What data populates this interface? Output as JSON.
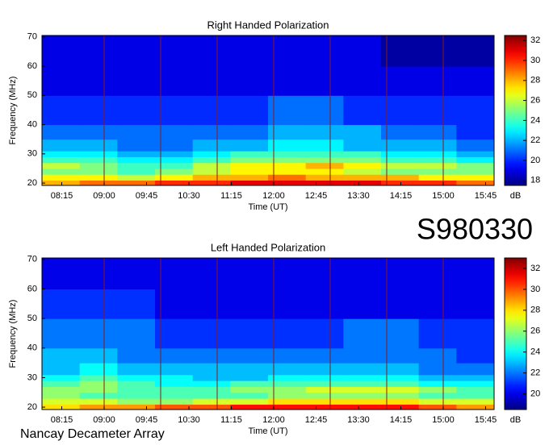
{
  "chart_data": [
    {
      "type": "heatmap",
      "title": "Right Handed Polarization",
      "x_label": "Time (UT)",
      "y_label": "Frequency (MHz)",
      "colorbar_label": "dB",
      "colormap": "jet",
      "xlim": [
        474,
        954
      ],
      "ylim": [
        19.2,
        70.5
      ],
      "xticks": [
        {
          "value": 495,
          "label": "08:15"
        },
        {
          "value": 540,
          "label": "09:00"
        },
        {
          "value": 585,
          "label": "09:45"
        },
        {
          "value": 630,
          "label": "10:30"
        },
        {
          "value": 675,
          "label": "11:15"
        },
        {
          "value": 720,
          "label": "12:00"
        },
        {
          "value": 765,
          "label": "12:45"
        },
        {
          "value": 810,
          "label": "13:30"
        },
        {
          "value": 855,
          "label": "14:15"
        },
        {
          "value": 900,
          "label": "15:00"
        },
        {
          "value": 945,
          "label": "15:45"
        }
      ],
      "yticks": [
        20,
        30,
        40,
        50,
        60,
        70
      ],
      "clim": [
        17.5,
        32.5
      ],
      "cticks": [
        18,
        20,
        22,
        24,
        26,
        28,
        30,
        32
      ],
      "markers": [
        540,
        600,
        660,
        720,
        780,
        840,
        900
      ],
      "marker_color": "#8b1a1a",
      "xbins": [
        474,
        514,
        554,
        594,
        634,
        674,
        714,
        754,
        794,
        834,
        874,
        914,
        954
      ],
      "ybins": [
        19.2,
        21,
        23,
        25,
        27,
        29,
        31,
        35,
        40,
        50,
        60,
        70.5
      ],
      "z": [
        [
          28,
          29,
          29,
          30,
          30,
          31,
          31,
          31,
          31,
          30,
          30,
          29
        ],
        [
          27,
          27,
          26,
          27,
          28,
          28,
          29,
          28,
          28,
          28,
          27,
          27
        ],
        [
          25,
          25,
          24,
          25,
          26,
          27,
          27,
          27,
          26,
          25,
          25,
          25
        ],
        [
          26,
          25,
          24,
          24,
          26,
          27,
          27,
          28,
          27,
          26,
          26,
          25
        ],
        [
          24,
          24,
          23,
          23,
          24,
          25,
          25,
          25,
          25,
          24,
          24,
          23
        ],
        [
          23,
          23,
          22,
          22,
          23,
          24,
          24,
          24,
          24,
          23,
          23,
          22
        ],
        [
          22,
          22,
          21,
          21,
          22,
          22,
          23,
          23,
          22,
          22,
          22,
          21
        ],
        [
          21,
          21,
          21,
          21,
          21,
          21,
          22,
          22,
          22,
          21,
          21,
          20
        ],
        [
          20,
          20,
          20,
          20,
          20,
          20,
          21,
          21,
          20,
          20,
          20,
          20
        ],
        [
          19,
          19,
          19,
          19,
          19,
          19,
          19,
          19,
          19,
          19,
          19,
          19
        ],
        [
          19,
          19,
          19,
          19,
          19,
          19,
          19,
          19,
          19,
          18,
          18,
          18
        ]
      ]
    },
    {
      "type": "heatmap",
      "title": "Left Handed Polarization",
      "x_label": "Time (UT)",
      "y_label": "Frequency (MHz)",
      "colorbar_label": "dB",
      "colormap": "jet",
      "xlim": [
        474,
        954
      ],
      "ylim": [
        19.2,
        70.5
      ],
      "xticks": [
        {
          "value": 495,
          "label": "08:15"
        },
        {
          "value": 540,
          "label": "09:00"
        },
        {
          "value": 585,
          "label": "09:45"
        },
        {
          "value": 630,
          "label": "10:30"
        },
        {
          "value": 675,
          "label": "11:15"
        },
        {
          "value": 720,
          "label": "12:00"
        },
        {
          "value": 765,
          "label": "12:45"
        },
        {
          "value": 810,
          "label": "13:30"
        },
        {
          "value": 855,
          "label": "14:15"
        },
        {
          "value": 900,
          "label": "15:00"
        },
        {
          "value": 945,
          "label": "15:45"
        }
      ],
      "yticks": [
        20,
        30,
        40,
        50,
        60,
        70
      ],
      "clim": [
        18.5,
        33
      ],
      "cticks": [
        20,
        22,
        24,
        26,
        28,
        30,
        32
      ],
      "markers": [
        540,
        600,
        660,
        720,
        780,
        840,
        900
      ],
      "marker_color": "#8b1a1a",
      "xbins": [
        474,
        514,
        554,
        594,
        634,
        674,
        714,
        754,
        794,
        834,
        874,
        914,
        954
      ],
      "ybins": [
        19.2,
        21,
        23,
        25,
        27,
        29,
        31,
        35,
        40,
        50,
        60,
        70.5
      ],
      "z": [
        [
          28,
          29,
          29,
          30,
          30,
          31,
          31,
          31,
          31,
          31,
          30,
          29
        ],
        [
          27,
          27,
          26,
          26,
          27,
          27,
          28,
          28,
          28,
          28,
          27,
          27
        ],
        [
          26,
          25,
          25,
          25,
          25,
          25,
          26,
          26,
          26,
          26,
          25,
          25
        ],
        [
          26,
          26,
          25,
          25,
          25,
          26,
          26,
          27,
          27,
          27,
          26,
          25
        ],
        [
          25,
          26,
          25,
          24,
          24,
          25,
          25,
          25,
          25,
          25,
          24,
          24
        ],
        [
          24,
          25,
          24,
          24,
          23,
          23,
          24,
          24,
          24,
          24,
          23,
          23
        ],
        [
          23,
          24,
          23,
          23,
          23,
          23,
          23,
          23,
          23,
          23,
          22,
          22
        ],
        [
          23,
          23,
          22,
          22,
          22,
          22,
          22,
          22,
          22,
          22,
          22,
          21
        ],
        [
          22,
          22,
          22,
          21,
          21,
          21,
          21,
          21,
          22,
          22,
          21,
          21
        ],
        [
          21,
          21,
          21,
          20,
          20,
          20,
          20,
          20,
          20,
          20,
          20,
          20
        ],
        [
          20,
          20,
          20,
          20,
          20,
          20,
          20,
          20,
          20,
          20,
          20,
          20
        ]
      ]
    }
  ],
  "observation_id": "S980330",
  "instrument": "Nancay Decameter Array"
}
